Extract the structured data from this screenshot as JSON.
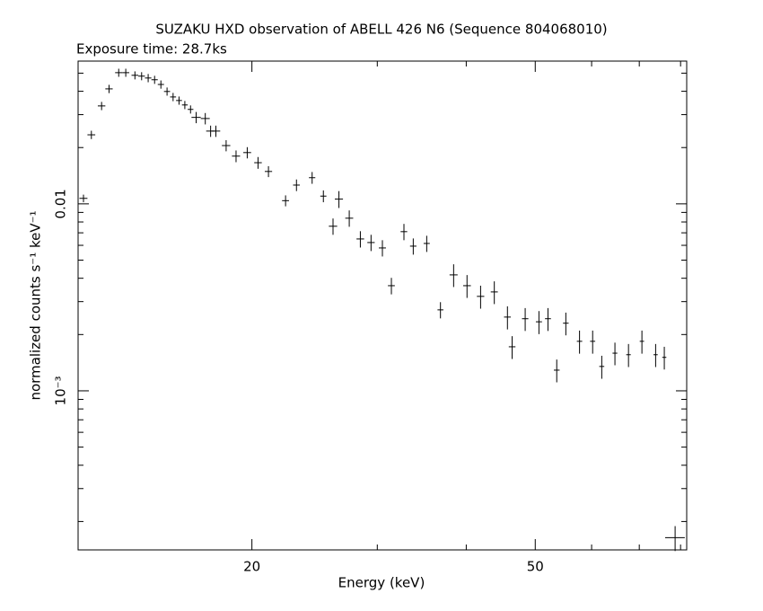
{
  "chart_data": {
    "type": "errorbar",
    "title": "SUZAKU HXD observation of ABELL 426 N6 (Sequence 804068010)",
    "subtitle": "Exposure time: 28.7ks",
    "xlabel": "Energy (keV)",
    "ylabel": "normalized counts s⁻¹ keV⁻¹",
    "xscale": "log",
    "yscale": "log",
    "color": "#000000",
    "xlim": [
      11.4,
      81.6
    ],
    "ylim": [
      0.000141,
      0.058
    ],
    "xticks": [
      20,
      50
    ],
    "yticks": [
      0.01,
      {
        "value": 0.001,
        "label": "10⁻³"
      }
    ],
    "xminorticks": [
      30,
      40,
      60,
      70,
      80
    ],
    "yminorticks": [
      0.0002,
      0.0003,
      0.0004,
      0.0005,
      0.0006,
      0.0007,
      0.0008,
      0.0009,
      0.002,
      0.003,
      0.004,
      0.005,
      0.006,
      0.007,
      0.008,
      0.009,
      0.02,
      0.03,
      0.04,
      0.05
    ],
    "x": [
      11.6,
      11.9,
      12.3,
      12.6,
      13.0,
      13.3,
      13.7,
      14.0,
      14.3,
      14.6,
      14.9,
      15.2,
      15.5,
      15.8,
      16.1,
      16.4,
      16.7,
      17.2,
      17.5,
      17.8,
      18.4,
      19.0,
      19.7,
      20.4,
      21.1,
      22.3,
      23.1,
      24.3,
      25.2,
      26.0,
      26.5,
      27.4,
      28.4,
      29.4,
      30.5,
      31.4,
      32.7,
      33.7,
      35.2,
      36.8,
      38.4,
      40.1,
      41.9,
      43.8,
      45.7,
      46.4,
      48.4,
      50.6,
      52.1,
      53.6,
      55.2,
      57.7,
      60.2,
      62.0,
      64.7,
      67.6,
      70.6,
      73.8,
      75.9,
      78.6
    ],
    "values": [
      0.0107,
      0.0234,
      0.0334,
      0.0412,
      0.0503,
      0.0503,
      0.0487,
      0.0482,
      0.0471,
      0.0461,
      0.0435,
      0.0399,
      0.0373,
      0.0357,
      0.0338,
      0.032,
      0.029,
      0.0286,
      0.0245,
      0.0245,
      0.0205,
      0.018,
      0.0188,
      0.0166,
      0.0149,
      0.0104,
      0.0126,
      0.0138,
      0.011,
      0.00759,
      0.0106,
      0.00838,
      0.00649,
      0.00621,
      0.00581,
      0.00365,
      0.0071,
      0.00594,
      0.00614,
      0.00271,
      0.00417,
      0.00365,
      0.0032,
      0.00338,
      0.00248,
      0.00172,
      0.00243,
      0.00234,
      0.00243,
      0.00129,
      0.0023,
      0.00184,
      0.00184,
      0.00135,
      0.00159,
      0.00156,
      0.00184,
      0.00156,
      0.00151,
      0.000164
    ],
    "yerr": [
      0.0005,
      0.0012,
      0.0017,
      0.0021,
      0.0025,
      0.0025,
      0.0024,
      0.0024,
      0.0024,
      0.0023,
      0.0022,
      0.002,
      0.0019,
      0.0018,
      0.0017,
      0.0016,
      0.002,
      0.002,
      0.0017,
      0.0017,
      0.0014,
      0.0013,
      0.0013,
      0.0012,
      0.001,
      0.0007,
      0.0009,
      0.001,
      0.0008,
      0.00076,
      0.0011,
      0.00084,
      0.00065,
      0.00062,
      0.00058,
      0.00037,
      0.00071,
      0.00059,
      0.00061,
      0.00027,
      0.00058,
      0.00051,
      0.00045,
      0.00047,
      0.00035,
      0.00024,
      0.00034,
      0.00033,
      0.00034,
      0.00018,
      0.00032,
      0.00026,
      0.00026,
      0.00019,
      0.00022,
      0.00022,
      0.00026,
      0.00022,
      0.00021,
      2.5e-05
    ],
    "xerr": [
      0.15,
      0.15,
      0.15,
      0.15,
      0.15,
      0.15,
      0.15,
      0.15,
      0.15,
      0.15,
      0.15,
      0.15,
      0.15,
      0.15,
      0.15,
      0.15,
      0.25,
      0.25,
      0.25,
      0.25,
      0.25,
      0.25,
      0.25,
      0.25,
      0.25,
      0.25,
      0.25,
      0.25,
      0.25,
      0.35,
      0.35,
      0.35,
      0.35,
      0.35,
      0.35,
      0.35,
      0.35,
      0.35,
      0.35,
      0.35,
      0.5,
      0.5,
      0.5,
      0.5,
      0.5,
      0.5,
      0.5,
      0.5,
      0.5,
      0.5,
      0.5,
      0.5,
      0.5,
      0.5,
      0.5,
      0.5,
      0.5,
      0.5,
      0.5,
      2.5
    ]
  }
}
